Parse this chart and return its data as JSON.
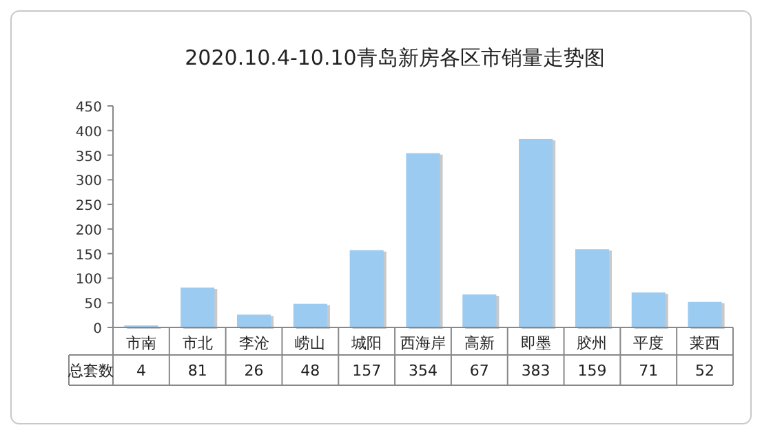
{
  "chart_data": {
    "type": "bar",
    "title": "2020.10.4-10.10青岛新房各区市销量走势图",
    "categories": [
      "市南",
      "市北",
      "李沧",
      "崂山",
      "城阳",
      "西海岸",
      "高新",
      "即墨",
      "胶州",
      "平度",
      "莱西"
    ],
    "series": [
      {
        "name": "总套数",
        "color": "#9ccbf2",
        "values": [
          4,
          81,
          26,
          48,
          157,
          354,
          67,
          383,
          159,
          71,
          52
        ]
      }
    ],
    "ylim": [
      0,
      450
    ],
    "yticks": [
      0,
      50,
      100,
      150,
      200,
      250,
      300,
      350,
      400,
      450
    ],
    "data_labels": true,
    "grid": false,
    "legend": false
  }
}
